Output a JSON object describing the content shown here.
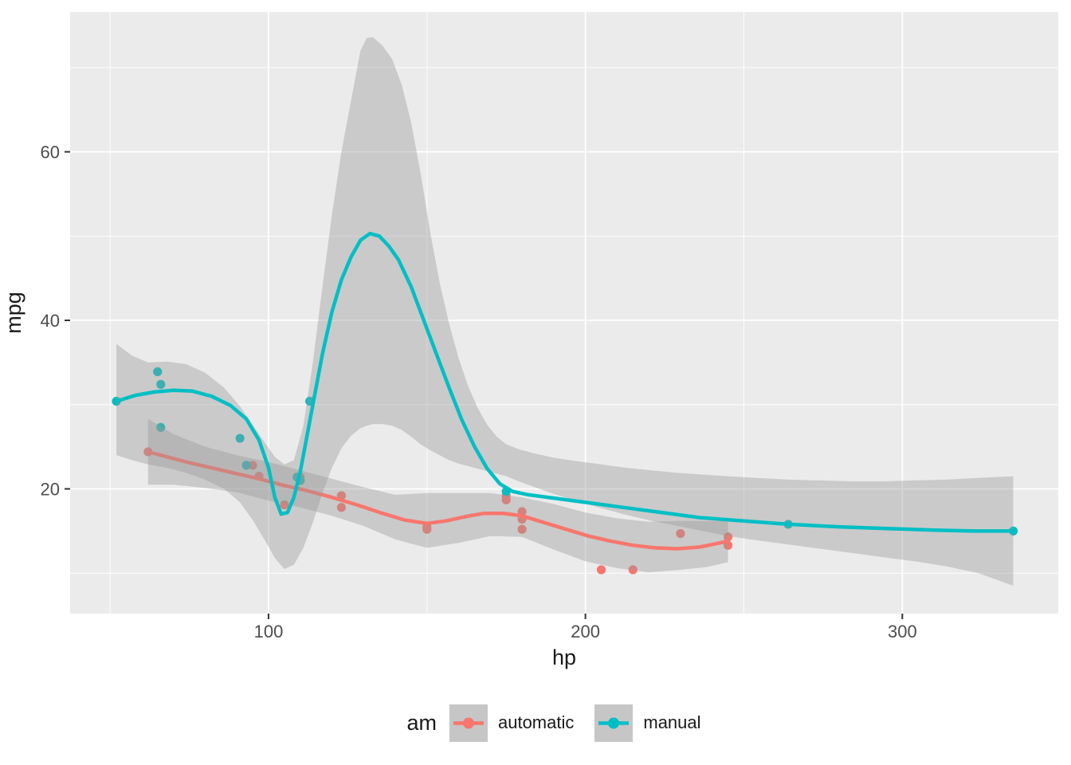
{
  "colors": {
    "panel_background": "#EBEBEB",
    "gridline": "#FFFFFF",
    "ribbon_fill": "#999999",
    "ribbon_alpha": 0.4,
    "tick_mark": "#333333",
    "tick_label": "#4D4D4D",
    "axis_title": "#1A1A1A",
    "legend_key_background": "#C6C6C6",
    "automatic": "#F8766D",
    "manual": "#00BFC4"
  },
  "chart_data": {
    "type": "scatter",
    "subtype": "points with loess smooth lines and confidence ribbons",
    "xlabel": "hp",
    "ylabel": "mpg",
    "x_ticks": [
      100,
      200,
      300
    ],
    "y_ticks": [
      20,
      40,
      60
    ],
    "x_minor_gridlines": [
      50,
      150,
      250
    ],
    "y_minor_gridlines": [
      10,
      30,
      50,
      70
    ],
    "x_domain": [
      37.4,
      349.2
    ],
    "y_domain": [
      5.2,
      76.6
    ],
    "grid": true,
    "legend": {
      "title": "am",
      "position": "bottom",
      "entries": [
        "automatic",
        "manual"
      ]
    },
    "series": [
      {
        "name": "automatic",
        "color": "#F8766D",
        "points": [
          [
            110,
            21.4
          ],
          [
            175,
            18.7
          ],
          [
            105,
            18.1
          ],
          [
            245,
            14.3
          ],
          [
            62,
            24.4
          ],
          [
            95,
            22.8
          ],
          [
            123,
            19.2
          ],
          [
            123,
            17.8
          ],
          [
            180,
            16.4
          ],
          [
            180,
            17.3
          ],
          [
            180,
            15.2
          ],
          [
            205,
            10.4
          ],
          [
            215,
            10.4
          ],
          [
            230,
            14.7
          ],
          [
            97,
            21.5
          ],
          [
            150,
            15.5
          ],
          [
            150,
            15.2
          ],
          [
            245,
            13.3
          ],
          [
            175,
            19.2
          ]
        ],
        "smooth_line": [
          [
            62,
            24.4
          ],
          [
            68,
            23.8
          ],
          [
            75,
            23.1
          ],
          [
            82,
            22.5
          ],
          [
            90,
            21.8
          ],
          [
            97,
            21.2
          ],
          [
            105,
            20.4
          ],
          [
            112,
            19.8
          ],
          [
            120,
            19.0
          ],
          [
            128,
            18.1
          ],
          [
            136,
            17.1
          ],
          [
            143,
            16.3
          ],
          [
            150,
            15.9
          ],
          [
            156,
            16.2
          ],
          [
            162,
            16.7
          ],
          [
            168,
            17.1
          ],
          [
            174,
            17.1
          ],
          [
            180,
            16.8
          ],
          [
            187,
            16.0
          ],
          [
            194,
            15.2
          ],
          [
            201,
            14.4
          ],
          [
            208,
            13.8
          ],
          [
            215,
            13.3
          ],
          [
            222,
            13.0
          ],
          [
            229,
            12.9
          ],
          [
            236,
            13.1
          ],
          [
            240,
            13.4
          ],
          [
            245,
            13.8
          ]
        ],
        "ribbon": [
          [
            62,
            20.5,
            28.3
          ],
          [
            70,
            20.5,
            26.5
          ],
          [
            80,
            20.1,
            25.0
          ],
          [
            90,
            19.6,
            24.0
          ],
          [
            100,
            18.6,
            23.2
          ],
          [
            110,
            17.8,
            22.2
          ],
          [
            120,
            16.8,
            21.2
          ],
          [
            130,
            15.6,
            20.2
          ],
          [
            140,
            14.0,
            19.3
          ],
          [
            150,
            13.0,
            19.5
          ],
          [
            160,
            13.6,
            19.5
          ],
          [
            170,
            14.4,
            19.5
          ],
          [
            180,
            14.3,
            19.0
          ],
          [
            190,
            12.8,
            18.2
          ],
          [
            200,
            11.4,
            17.2
          ],
          [
            210,
            10.6,
            16.5
          ],
          [
            220,
            10.1,
            16.1
          ],
          [
            230,
            10.4,
            16.2
          ],
          [
            238,
            10.7,
            16.2
          ],
          [
            245,
            11.3,
            16.2
          ]
        ]
      },
      {
        "name": "manual",
        "color": "#00BFC4",
        "points": [
          [
            110,
            21.0
          ],
          [
            110,
            21.0
          ],
          [
            93,
            22.8
          ],
          [
            66,
            32.4
          ],
          [
            52,
            30.4
          ],
          [
            65,
            33.9
          ],
          [
            66,
            27.3
          ],
          [
            91,
            26.0
          ],
          [
            113,
            30.4
          ],
          [
            264,
            15.8
          ],
          [
            175,
            19.7
          ],
          [
            335,
            15.0
          ],
          [
            109,
            21.4
          ]
        ],
        "smooth_line": [
          [
            52,
            30.4
          ],
          [
            58,
            31.1
          ],
          [
            64,
            31.5
          ],
          [
            70,
            31.7
          ],
          [
            76,
            31.6
          ],
          [
            82,
            31.0
          ],
          [
            88,
            29.9
          ],
          [
            93,
            28.3
          ],
          [
            97,
            25.8
          ],
          [
            100,
            22.5
          ],
          [
            102,
            19.0
          ],
          [
            104,
            17.0
          ],
          [
            106,
            17.2
          ],
          [
            108,
            19.0
          ],
          [
            110,
            22.0
          ],
          [
            112,
            26.0
          ],
          [
            114,
            30.0
          ],
          [
            117,
            36.0
          ],
          [
            120,
            41.0
          ],
          [
            123,
            44.8
          ],
          [
            126,
            47.5
          ],
          [
            129,
            49.5
          ],
          [
            132,
            50.3
          ],
          [
            135,
            50.0
          ],
          [
            138,
            48.8
          ],
          [
            141,
            47.2
          ],
          [
            145,
            44.0
          ],
          [
            149,
            40.0
          ],
          [
            153,
            36.0
          ],
          [
            157,
            32.0
          ],
          [
            161,
            28.2
          ],
          [
            165,
            25.0
          ],
          [
            169,
            22.4
          ],
          [
            173,
            20.6
          ],
          [
            177,
            19.7
          ],
          [
            182,
            19.3
          ],
          [
            190,
            18.9
          ],
          [
            200,
            18.4
          ],
          [
            212,
            17.8
          ],
          [
            224,
            17.2
          ],
          [
            236,
            16.6
          ],
          [
            250,
            16.2
          ],
          [
            264,
            15.8
          ],
          [
            280,
            15.5
          ],
          [
            295,
            15.3
          ],
          [
            310,
            15.1
          ],
          [
            322,
            15.0
          ],
          [
            335,
            15.0
          ]
        ],
        "ribbon": [
          [
            52,
            24.0,
            37.2
          ],
          [
            57,
            23.4,
            35.8
          ],
          [
            62,
            22.9,
            35.0
          ],
          [
            68,
            22.5,
            35.1
          ],
          [
            74,
            21.9,
            34.8
          ],
          [
            80,
            21.1,
            33.8
          ],
          [
            86,
            20.0,
            32.0
          ],
          [
            91,
            18.4,
            29.8
          ],
          [
            95,
            16.3,
            27.6
          ],
          [
            99,
            13.8,
            25.4
          ],
          [
            102,
            11.8,
            23.8
          ],
          [
            105,
            10.5,
            22.9
          ],
          [
            108,
            11.0,
            23.4
          ],
          [
            111,
            13.0,
            27.5
          ],
          [
            114,
            16.0,
            35.0
          ],
          [
            117,
            19.5,
            44.0
          ],
          [
            120,
            22.5,
            52.5
          ],
          [
            123,
            24.8,
            60.0
          ],
          [
            126,
            26.3,
            66.0
          ],
          [
            129,
            27.2,
            72.0
          ],
          [
            131,
            27.5,
            73.5
          ],
          [
            133,
            27.7,
            73.6
          ],
          [
            136,
            27.7,
            72.6
          ],
          [
            139,
            27.5,
            71.0
          ],
          [
            142,
            27.0,
            68.0
          ],
          [
            145,
            26.2,
            63.5
          ],
          [
            148,
            25.3,
            57.5
          ],
          [
            151,
            24.6,
            50.5
          ],
          [
            154,
            24.0,
            44.5
          ],
          [
            157,
            23.4,
            39.6
          ],
          [
            160,
            23.0,
            35.5
          ],
          [
            163,
            22.7,
            32.2
          ],
          [
            166,
            22.4,
            29.6
          ],
          [
            169,
            22.1,
            27.6
          ],
          [
            172,
            21.8,
            26.2
          ],
          [
            175,
            21.5,
            25.3
          ],
          [
            179,
            20.9,
            24.7
          ],
          [
            184,
            20.2,
            24.2
          ],
          [
            190,
            19.4,
            23.7
          ],
          [
            197,
            18.6,
            23.3
          ],
          [
            205,
            17.7,
            22.9
          ],
          [
            213,
            16.9,
            22.5
          ],
          [
            221,
            16.2,
            22.2
          ],
          [
            229,
            15.6,
            21.9
          ],
          [
            237,
            15.0,
            21.7
          ],
          [
            245,
            14.4,
            21.5
          ],
          [
            254,
            13.9,
            21.3
          ],
          [
            264,
            13.4,
            21.1
          ],
          [
            274,
            12.9,
            21.0
          ],
          [
            284,
            12.4,
            20.9
          ],
          [
            294,
            11.9,
            20.9
          ],
          [
            304,
            11.4,
            21.0
          ],
          [
            314,
            10.8,
            21.1
          ],
          [
            324,
            10.0,
            21.3
          ],
          [
            335,
            8.5,
            21.5
          ]
        ]
      }
    ]
  }
}
